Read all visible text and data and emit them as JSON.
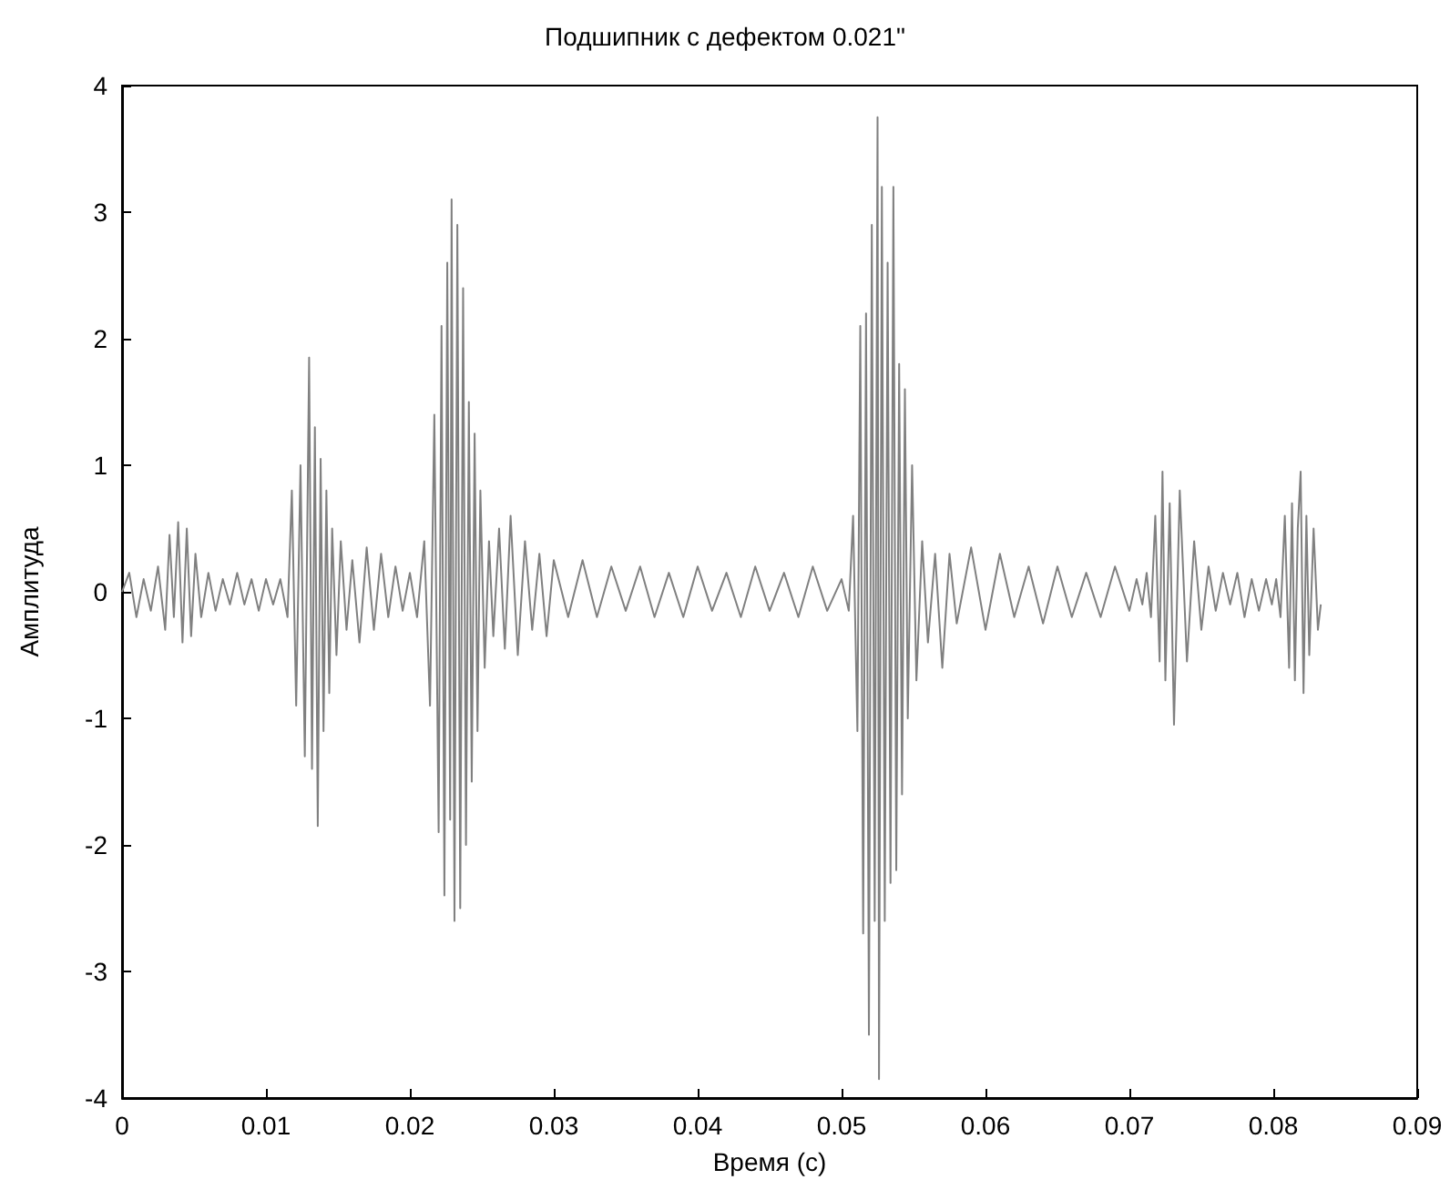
{
  "chart_data": {
    "type": "line",
    "title": "Подшипник с дефектом 0.021\"",
    "xlabel": "Время (с)",
    "ylabel": "Амплитуда",
    "x": [
      0,
      0.0005,
      0.001,
      0.0015,
      0.002,
      0.0025,
      0.003,
      0.0033,
      0.0036,
      0.0039,
      0.0042,
      0.0045,
      0.0048,
      0.0051,
      0.0055,
      0.006,
      0.0065,
      0.007,
      0.0075,
      0.008,
      0.0085,
      0.009,
      0.0095,
      0.01,
      0.0105,
      0.011,
      0.0115,
      0.0118,
      0.0121,
      0.0124,
      0.0127,
      0.013,
      0.0132,
      0.0134,
      0.0136,
      0.0138,
      0.014,
      0.0142,
      0.0144,
      0.0146,
      0.0149,
      0.0152,
      0.0156,
      0.016,
      0.0165,
      0.017,
      0.0175,
      0.018,
      0.0185,
      0.019,
      0.0195,
      0.02,
      0.0205,
      0.021,
      0.0214,
      0.0217,
      0.022,
      0.0222,
      0.0224,
      0.0226,
      0.0228,
      0.0229,
      0.0231,
      0.0233,
      0.0235,
      0.0237,
      0.0239,
      0.0241,
      0.0243,
      0.0245,
      0.0247,
      0.0249,
      0.0252,
      0.0255,
      0.0258,
      0.0262,
      0.0266,
      0.027,
      0.0275,
      0.028,
      0.0285,
      0.029,
      0.0295,
      0.03,
      0.031,
      0.032,
      0.033,
      0.034,
      0.035,
      0.036,
      0.037,
      0.038,
      0.039,
      0.04,
      0.041,
      0.042,
      0.043,
      0.044,
      0.045,
      0.046,
      0.047,
      0.048,
      0.049,
      0.05,
      0.0505,
      0.0508,
      0.0511,
      0.0513,
      0.0515,
      0.0517,
      0.0519,
      0.0521,
      0.0523,
      0.0525,
      0.0526,
      0.0528,
      0.053,
      0.0532,
      0.0534,
      0.0536,
      0.0538,
      0.054,
      0.0542,
      0.0544,
      0.0546,
      0.0549,
      0.0552,
      0.0556,
      0.056,
      0.0565,
      0.057,
      0.0575,
      0.058,
      0.059,
      0.06,
      0.061,
      0.062,
      0.063,
      0.064,
      0.065,
      0.066,
      0.067,
      0.068,
      0.069,
      0.07,
      0.0705,
      0.0709,
      0.0712,
      0.0715,
      0.0718,
      0.0721,
      0.0723,
      0.0725,
      0.0728,
      0.0731,
      0.0735,
      0.074,
      0.0745,
      0.075,
      0.0755,
      0.076,
      0.0765,
      0.077,
      0.0775,
      0.078,
      0.0785,
      0.079,
      0.0795,
      0.0799,
      0.0802,
      0.0805,
      0.0808,
      0.0811,
      0.0813,
      0.0815,
      0.0817,
      0.0819,
      0.0821,
      0.0823,
      0.0825,
      0.0828,
      0.0831,
      0.0833
    ],
    "series": [
      {
        "color": "#808080",
        "values": [
          0,
          0.15,
          -0.2,
          0.1,
          -0.15,
          0.2,
          -0.3,
          0.45,
          -0.2,
          0.55,
          -0.4,
          0.5,
          -0.35,
          0.3,
          -0.2,
          0.15,
          -0.15,
          0.1,
          -0.1,
          0.15,
          -0.1,
          0.1,
          -0.15,
          0.1,
          -0.1,
          0.1,
          -0.2,
          0.8,
          -0.9,
          1.0,
          -1.3,
          1.85,
          -1.4,
          1.3,
          -1.85,
          1.05,
          -1.1,
          0.8,
          -0.8,
          0.5,
          -0.5,
          0.4,
          -0.3,
          0.25,
          -0.4,
          0.35,
          -0.3,
          0.3,
          -0.2,
          0.2,
          -0.15,
          0.15,
          -0.2,
          0.4,
          -0.9,
          1.4,
          -1.9,
          2.1,
          -2.4,
          2.6,
          -1.8,
          3.1,
          -2.6,
          2.9,
          -2.5,
          2.4,
          -2.0,
          1.5,
          -1.5,
          1.25,
          -1.1,
          0.8,
          -0.6,
          0.4,
          -0.35,
          0.5,
          -0.45,
          0.6,
          -0.5,
          0.4,
          -0.3,
          0.3,
          -0.35,
          0.25,
          -0.2,
          0.25,
          -0.2,
          0.2,
          -0.15,
          0.2,
          -0.2,
          0.15,
          -0.2,
          0.2,
          -0.15,
          0.15,
          -0.2,
          0.2,
          -0.15,
          0.15,
          -0.2,
          0.2,
          -0.15,
          0.1,
          -0.15,
          0.6,
          -1.1,
          2.1,
          -2.7,
          2.2,
          -3.5,
          2.9,
          -2.6,
          3.75,
          -3.85,
          3.2,
          -2.6,
          2.6,
          -2.3,
          3.2,
          -2.2,
          1.8,
          -1.6,
          1.6,
          -1.0,
          1.0,
          -0.7,
          0.4,
          -0.4,
          0.3,
          -0.6,
          0.3,
          -0.25,
          0.35,
          -0.3,
          0.3,
          -0.2,
          0.2,
          -0.25,
          0.2,
          -0.2,
          0.15,
          -0.2,
          0.2,
          -0.15,
          0.1,
          -0.1,
          0.15,
          -0.2,
          0.6,
          -0.55,
          0.95,
          -0.7,
          0.7,
          -1.05,
          0.8,
          -0.55,
          0.4,
          -0.3,
          0.2,
          -0.15,
          0.15,
          -0.1,
          0.15,
          -0.2,
          0.1,
          -0.15,
          0.1,
          -0.1,
          0.1,
          -0.2,
          0.6,
          -0.6,
          0.7,
          -0.7,
          0.5,
          0.95,
          -0.8,
          0.6,
          -0.5,
          0.5,
          -0.3,
          -0.1
        ]
      }
    ],
    "xlim": [
      0,
      0.09
    ],
    "xticks": [
      0,
      0.01,
      0.02,
      0.03,
      0.04,
      0.05,
      0.06,
      0.07,
      0.08,
      0.09
    ],
    "ylim": [
      -4,
      4
    ],
    "yticks": [
      -4,
      -3,
      -2,
      -1,
      0,
      1,
      2,
      3,
      4
    ],
    "grid": false,
    "marker": "none",
    "line_style": "solid"
  }
}
